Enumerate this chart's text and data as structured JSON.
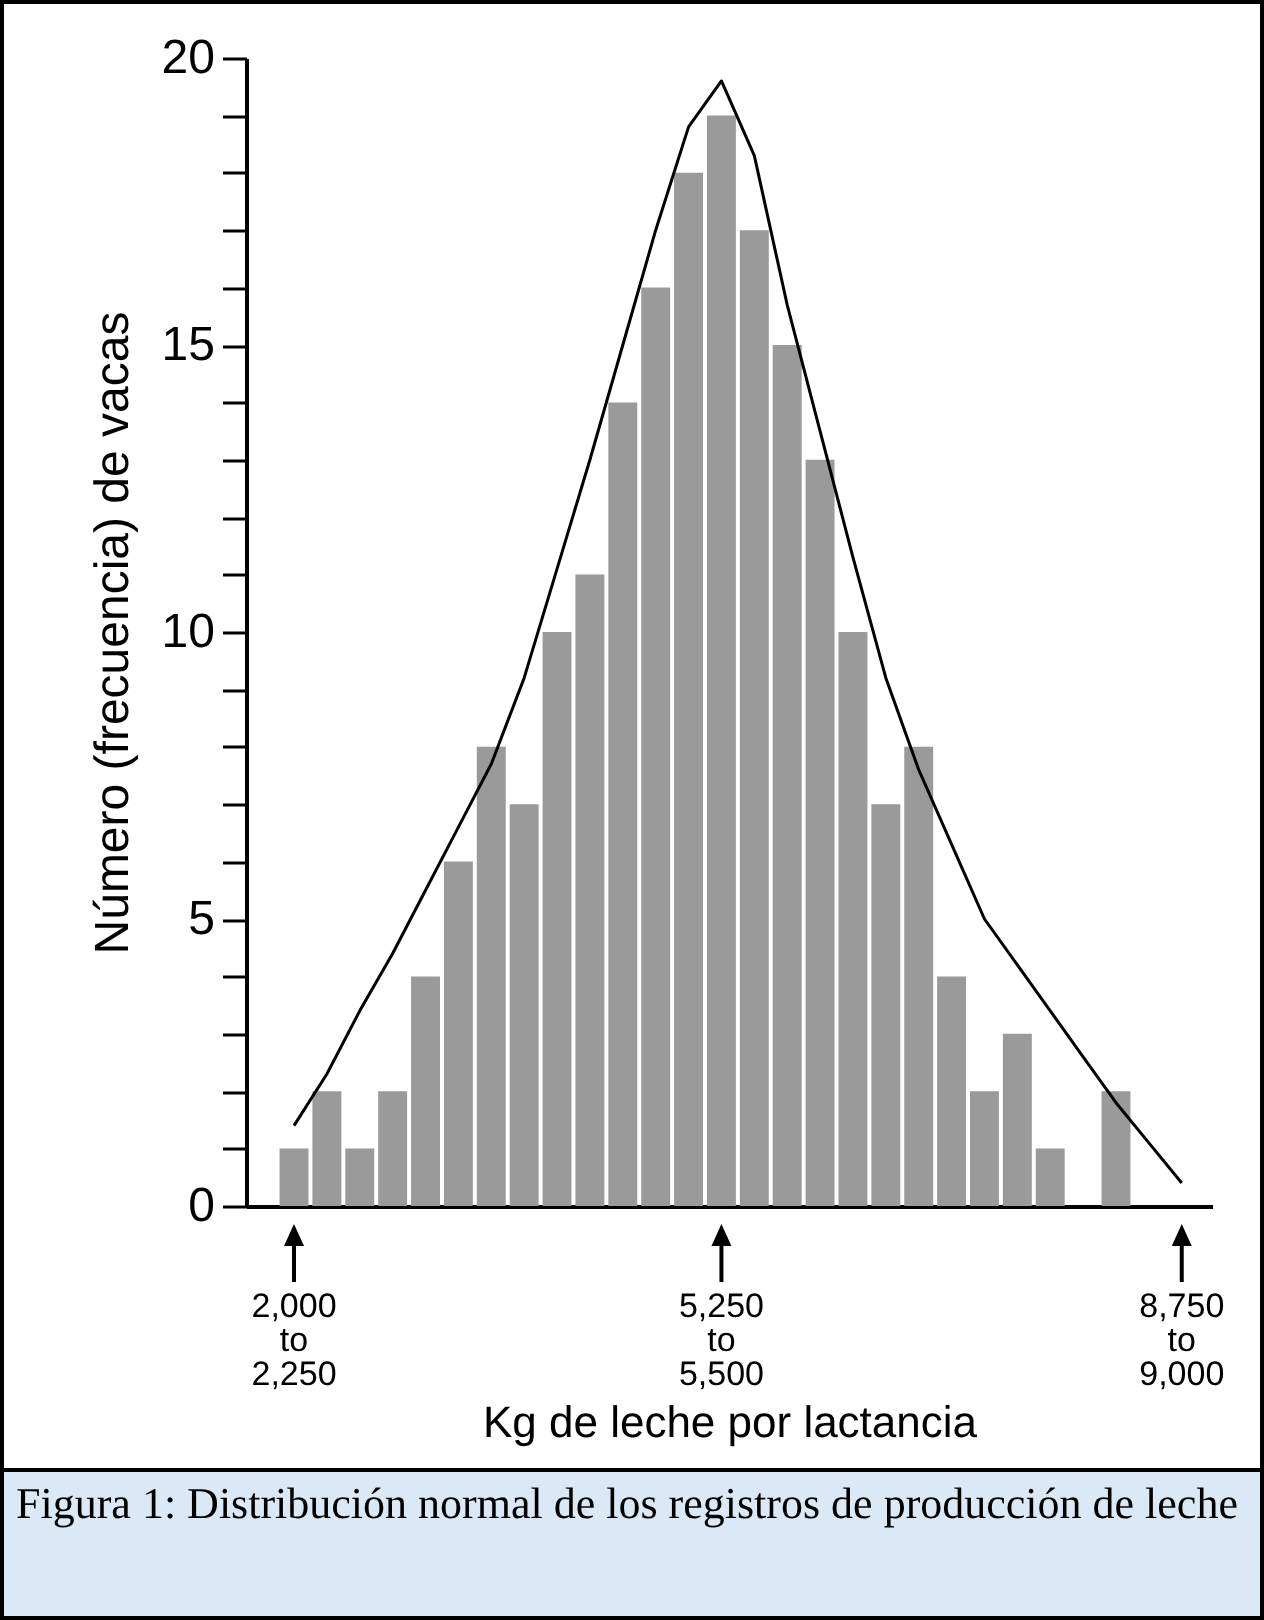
{
  "chart_data": {
    "type": "bar",
    "xlabel": "Kg de leche por lactancia",
    "ylabel": "Número (frecuencia) de vacas",
    "categories": [
      "2,000\nto\n2,250",
      null,
      null,
      null,
      null,
      null,
      null,
      null,
      null,
      null,
      null,
      null,
      null,
      "5,250\nto\n5,500",
      null,
      null,
      null,
      null,
      null,
      null,
      null,
      null,
      null,
      null,
      null,
      null,
      null,
      "8,750\nto\n9,000"
    ],
    "series": [
      {
        "color": "#9a9a9a",
        "values": [
          1,
          2,
          1,
          2,
          4,
          6,
          8,
          7,
          10,
          11,
          14,
          16,
          18,
          19,
          17,
          15,
          13,
          10,
          7,
          8,
          4,
          2,
          3,
          1,
          0,
          2,
          0,
          0
        ]
      },
      {
        "type": "line",
        "color": "#000000",
        "values": [
          1.4,
          2.3,
          3.4,
          4.4,
          5.5,
          6.6,
          7.7,
          9.2,
          11.1,
          13.0,
          15.0,
          17.0,
          18.8,
          19.6,
          18.3,
          15.7,
          13.5,
          11.3,
          9.2,
          7.6,
          6.3,
          5.0,
          4.2,
          3.4,
          2.6,
          1.8,
          1.1,
          0.4
        ]
      }
    ],
    "ylim": [
      0,
      20
    ],
    "yticks": [
      0,
      {
        "value": 1,
        "label": null
      },
      {
        "value": 2,
        "label": null
      },
      {
        "value": 3,
        "label": null
      },
      {
        "value": 4,
        "label": null
      },
      5,
      {
        "value": 6,
        "label": null
      },
      {
        "value": 7,
        "label": null
      },
      {
        "value": 8,
        "label": null
      },
      {
        "value": 9,
        "label": null
      },
      10,
      {
        "value": 11,
        "label": null
      },
      {
        "value": 12,
        "label": null
      },
      {
        "value": 13,
        "label": null
      },
      {
        "value": 14,
        "label": null
      },
      15,
      {
        "value": 16,
        "label": null
      },
      {
        "value": 17,
        "label": null
      },
      {
        "value": 18,
        "label": null
      },
      {
        "value": 19,
        "label": null
      },
      20
    ],
    "annotations": [
      "Figura 1:  Distribución normal de los registros de producción de leche"
    ]
  }
}
